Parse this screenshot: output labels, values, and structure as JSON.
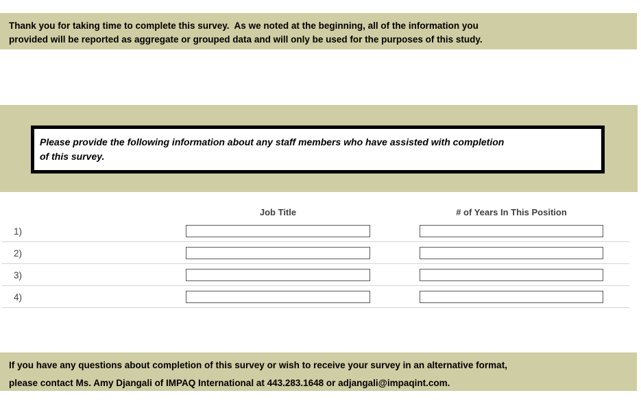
{
  "colors": {
    "banner_bg": "#cfcda3",
    "box_border": "#000000",
    "separator": "#d4d4d4",
    "input_border": "#595959",
    "header_text": "#3f3f3f"
  },
  "banners": {
    "top": {
      "lines": [
        "Thank you for taking time to complete this survey.  As we noted at the beginning, all of the information you",
        "provided will be reported as aggregate or grouped data and will only be used for the purposes of this study."
      ]
    },
    "bottom": {
      "lines": [
        "If you have any questions about completion of this survey or wish to receive your survey in an alternative format,",
        "please contact Ms. Amy Djangali of IMPAQ International at 443.283.1648 or adjangali@impaqint.com."
      ]
    }
  },
  "instruction_box": {
    "lines": [
      "Please provide the following information about any staff members who have assisted with completion",
      "of this survey."
    ]
  },
  "staff_table": {
    "columns": [
      "Job Title",
      "# of Years In This Position"
    ],
    "rows": [
      {
        "label": "1)",
        "job_title": "",
        "years": ""
      },
      {
        "label": "2)",
        "job_title": "",
        "years": ""
      },
      {
        "label": "3)",
        "job_title": "",
        "years": ""
      },
      {
        "label": "4)",
        "job_title": "",
        "years": ""
      }
    ]
  }
}
